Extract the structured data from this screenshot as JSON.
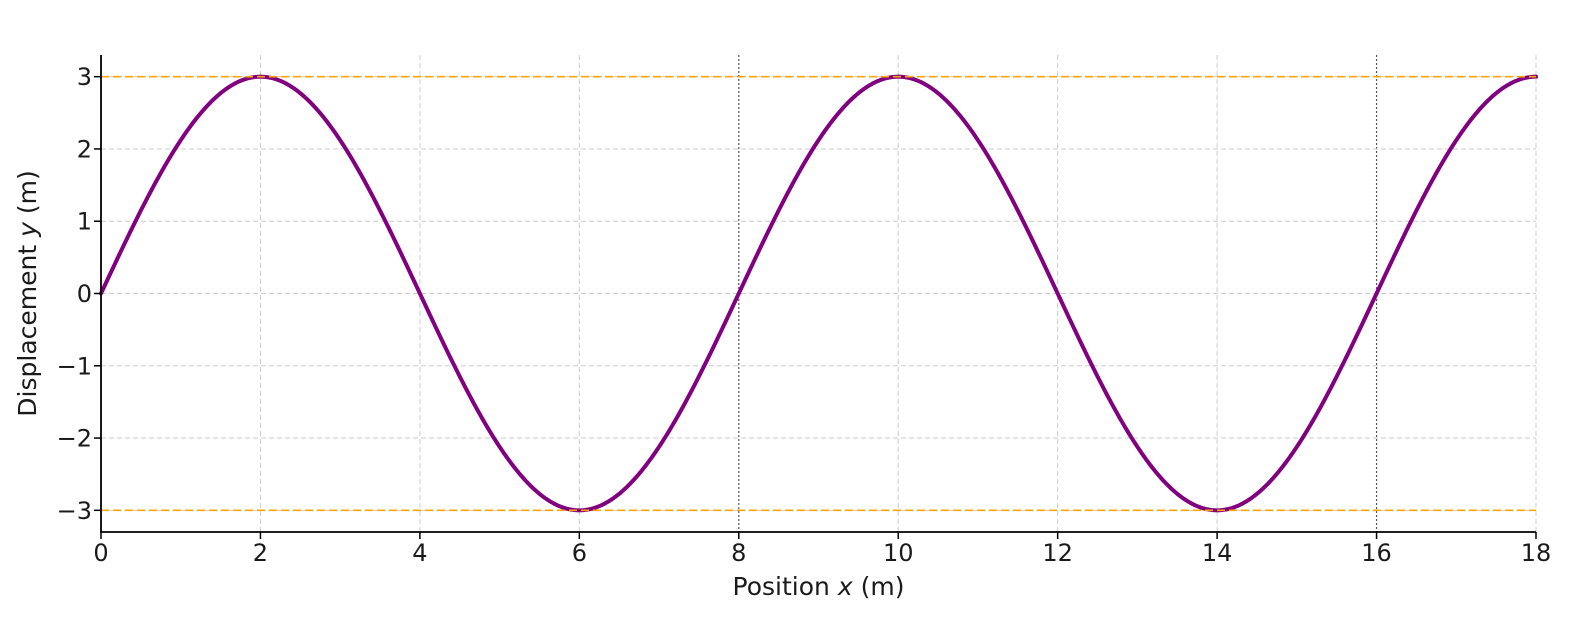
{
  "chart_data": {
    "type": "line",
    "title": "",
    "xlabel": {
      "prefix": "Position ",
      "var": "x",
      "suffix": " (m)"
    },
    "ylabel": {
      "prefix": "Displacement ",
      "var": "y",
      "suffix": " (m)"
    },
    "xlim": [
      0,
      18
    ],
    "ylim": [
      -3.3,
      3.3
    ],
    "xticks": [
      0,
      2,
      4,
      6,
      8,
      10,
      12,
      14,
      16,
      18
    ],
    "yticks": [
      -3,
      -2,
      -1,
      0,
      1,
      2,
      3
    ],
    "xtick_labels": [
      "0",
      "2",
      "4",
      "6",
      "8",
      "10",
      "12",
      "14",
      "16",
      "18"
    ],
    "ytick_labels": [
      "−3",
      "−2",
      "−1",
      "0",
      "1",
      "2",
      "3"
    ],
    "grid": true,
    "emphasized_vertical_lines_x": [
      8,
      16
    ],
    "reference_lines_y": [
      3,
      -3
    ],
    "series": [
      {
        "function": "sine",
        "amplitude": 3,
        "wavelength": 8,
        "x": [
          0,
          1,
          2,
          3,
          4,
          5,
          6,
          7,
          8,
          9,
          10,
          11,
          12,
          13,
          14,
          15,
          16,
          17,
          18
        ],
        "y": [
          0,
          2.12,
          3,
          2.12,
          0,
          -2.12,
          -3,
          -2.12,
          0,
          2.12,
          3,
          2.12,
          0,
          -2.12,
          -3,
          -2.12,
          0,
          2.12,
          3
        ]
      }
    ],
    "colors": {
      "curve": "#800080",
      "reference": "#FFA500",
      "grid": "#cccccc",
      "emphasized_grid": "#555555",
      "axis": "#000000"
    }
  }
}
